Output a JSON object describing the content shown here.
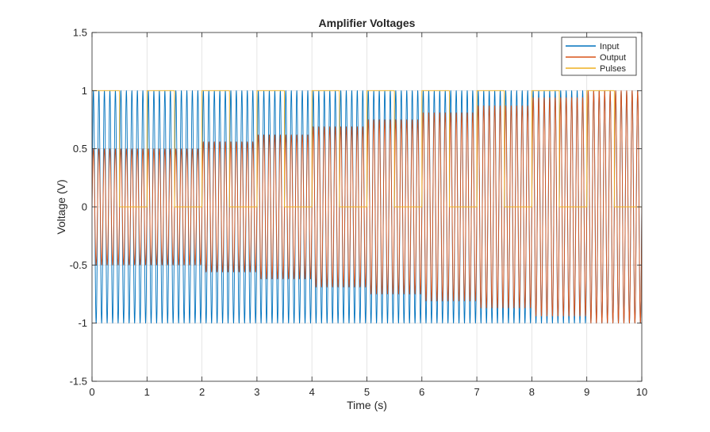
{
  "chart_data": {
    "type": "line",
    "title": "Amplifier Voltages",
    "xlabel": "Time (s)",
    "ylabel": "Voltage (V)",
    "xlim": [
      0,
      10
    ],
    "ylim": [
      -1.5,
      1.5
    ],
    "x_ticks": [
      0,
      1,
      2,
      3,
      4,
      5,
      6,
      7,
      8,
      9,
      10
    ],
    "x_tick_labels": [
      "0",
      "1",
      "2",
      "3",
      "4",
      "5",
      "6",
      "7",
      "8",
      "9",
      "10"
    ],
    "y_ticks": [
      -1.5,
      -1,
      -0.5,
      0,
      0.5,
      1,
      1.5
    ],
    "y_tick_labels": [
      "-1.5",
      "-1",
      "-0.5",
      "0",
      "0.5",
      "1",
      "1.5"
    ],
    "grid": true,
    "legend_position": "top-right",
    "series": [
      {
        "name": "Input",
        "color": "#0072BD",
        "waveform": "sine",
        "frequency_hz": 10,
        "amplitude": 1.0
      },
      {
        "name": "Output",
        "color": "#D95319",
        "waveform": "sine",
        "frequency_hz": 10,
        "amplitude_steps": [
          {
            "t_start": 0,
            "t_end": 1,
            "amplitude": 0.5
          },
          {
            "t_start": 1,
            "t_end": 2,
            "amplitude": 0.5
          },
          {
            "t_start": 2,
            "t_end": 3,
            "amplitude": 0.56
          },
          {
            "t_start": 3,
            "t_end": 4,
            "amplitude": 0.62
          },
          {
            "t_start": 4,
            "t_end": 5,
            "amplitude": 0.69
          },
          {
            "t_start": 5,
            "t_end": 6,
            "amplitude": 0.75
          },
          {
            "t_start": 6,
            "t_end": 7,
            "amplitude": 0.81
          },
          {
            "t_start": 7,
            "t_end": 8,
            "amplitude": 0.87
          },
          {
            "t_start": 8,
            "t_end": 9,
            "amplitude": 0.94
          },
          {
            "t_start": 9,
            "t_end": 10,
            "amplitude": 1.0
          }
        ]
      },
      {
        "name": "Pulses",
        "color": "#EDB120",
        "waveform": "square",
        "period_s": 1,
        "high_duration_s": 0.5,
        "low": 0,
        "high": 1
      }
    ]
  }
}
